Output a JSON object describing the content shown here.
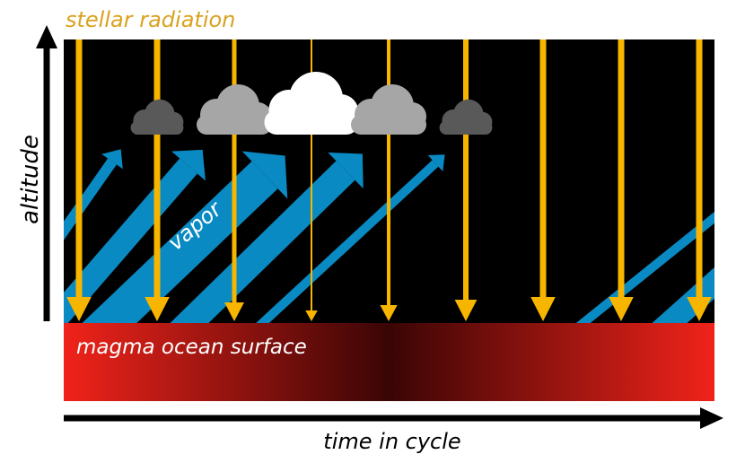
{
  "labels": {
    "radiation": "stellar radiation",
    "altitude": "altitude",
    "vapor": "vapor",
    "surface": "magma ocean surface",
    "time": "time in cycle"
  }
}
